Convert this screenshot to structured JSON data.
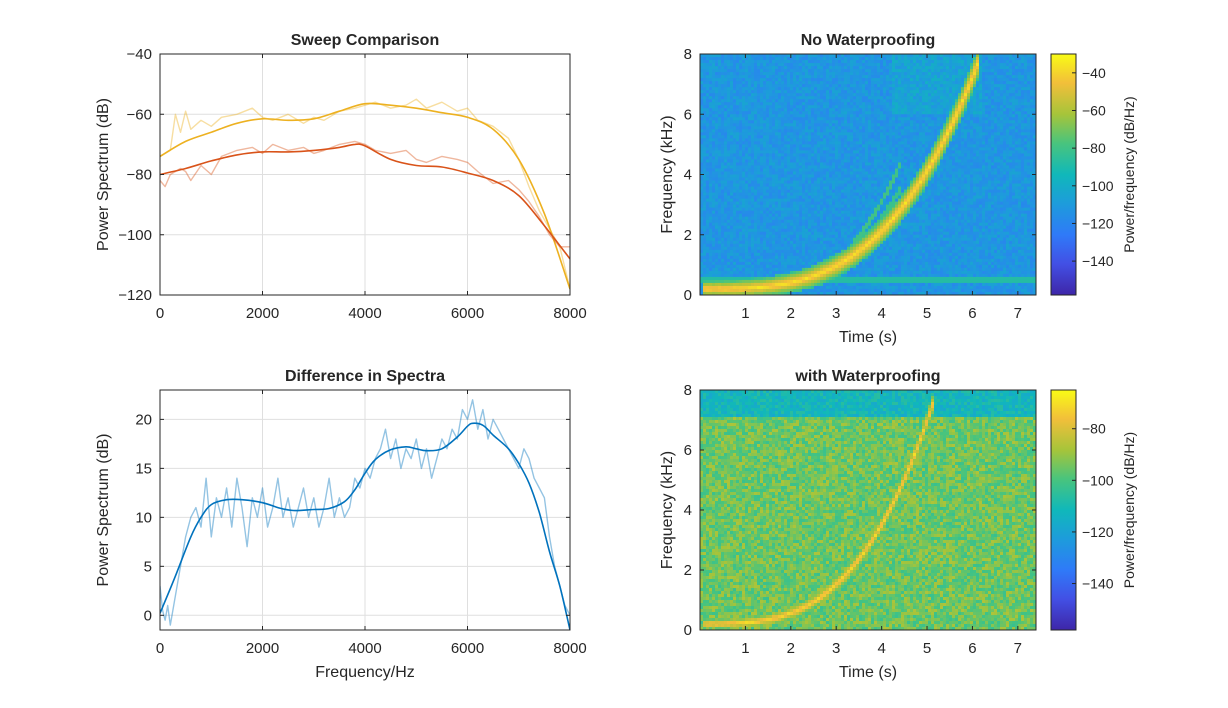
{
  "colors": {
    "series_orange": "#D95319",
    "series_yellow": "#EDB120",
    "series_blue": "#0072BD",
    "axis": "#262626",
    "grid": "#DFDFDF"
  },
  "chart_data": [
    {
      "id": "sweep",
      "type": "line",
      "title": "Sweep Comparison",
      "xlabel": "",
      "ylabel": "Power Spectrum (dB)",
      "xlim": [
        0,
        8000
      ],
      "ylim": [
        -120,
        -40
      ],
      "xticks": [
        0,
        2000,
        4000,
        6000,
        8000
      ],
      "yticks": [
        -120,
        -100,
        -80,
        -60,
        -40
      ],
      "grid": true,
      "series": [
        {
          "color": "#EDB120",
          "raw_x": [
            0,
            200,
            300,
            400,
            500,
            600,
            800,
            1000,
            1200,
            1500,
            1800,
            2000,
            2200,
            2500,
            2800,
            3000,
            3200,
            3500,
            3800,
            4000,
            4200,
            4500,
            4800,
            5000,
            5200,
            5500,
            5800,
            6000,
            6200,
            6500,
            6800,
            7000,
            7200,
            7400,
            7600,
            7800,
            8000
          ],
          "raw_y": [
            -74,
            -72,
            -60,
            -66,
            -59,
            -65,
            -62,
            -64,
            -61,
            -60,
            -58,
            -61,
            -62,
            -60,
            -63,
            -61,
            -62,
            -59,
            -58,
            -57,
            -56,
            -58,
            -57,
            -55,
            -58,
            -56,
            -59,
            -58,
            -62,
            -64,
            -68,
            -75,
            -84,
            -92,
            -98,
            -104,
            -118
          ],
          "smooth_x": [
            0,
            500,
            1000,
            1500,
            2000,
            2500,
            3000,
            3500,
            4000,
            4500,
            5000,
            5500,
            6000,
            6500,
            7000,
            7500,
            8000
          ],
          "smooth_y": [
            -74,
            -69,
            -66,
            -63,
            -61.5,
            -62,
            -61.5,
            -59,
            -56.5,
            -57,
            -58,
            -59.5,
            -61,
            -65,
            -75,
            -93,
            -118
          ]
        },
        {
          "color": "#D95319",
          "raw_x": [
            0,
            100,
            200,
            300,
            400,
            500,
            600,
            800,
            1000,
            1200,
            1500,
            1800,
            2000,
            2200,
            2500,
            2800,
            3000,
            3200,
            3500,
            3800,
            4000,
            4200,
            4500,
            4800,
            5000,
            5200,
            5500,
            5800,
            6000,
            6200,
            6500,
            6800,
            7000,
            7200,
            7400,
            7600,
            7800,
            8000
          ],
          "raw_y": [
            -82,
            -84,
            -80,
            -79,
            -78,
            -79,
            -82,
            -77,
            -80,
            -74,
            -72,
            -71,
            -73,
            -70,
            -72,
            -71,
            -73,
            -72,
            -70,
            -69,
            -70,
            -72,
            -73,
            -72,
            -75,
            -76,
            -74,
            -75,
            -76,
            -79,
            -83,
            -82,
            -85,
            -89,
            -94,
            -100,
            -104,
            -104
          ],
          "smooth_x": [
            0,
            500,
            1000,
            1500,
            2000,
            2500,
            3000,
            3500,
            3800,
            4000,
            4500,
            5000,
            5500,
            6000,
            6500,
            7000,
            7500,
            8000
          ],
          "smooth_y": [
            -80,
            -78,
            -75.5,
            -73.5,
            -72.5,
            -72.5,
            -72,
            -71,
            -70,
            -70.5,
            -75,
            -77,
            -77.5,
            -79.5,
            -82,
            -87,
            -97,
            -108
          ]
        }
      ]
    },
    {
      "id": "diff",
      "type": "line",
      "title": "Difference in Spectra",
      "xlabel": "Frequency/Hz",
      "ylabel": "Power Spectrum (dB)",
      "xlim": [
        0,
        8000
      ],
      "ylim": [
        -1.5,
        23
      ],
      "xticks": [
        0,
        2000,
        4000,
        6000,
        8000
      ],
      "yticks": [
        0,
        5,
        10,
        15,
        20
      ],
      "grid": true,
      "series": [
        {
          "color": "#0072BD",
          "raw_x": [
            0,
            50,
            100,
            150,
            200,
            300,
            400,
            500,
            600,
            700,
            800,
            900,
            1000,
            1100,
            1200,
            1300,
            1400,
            1500,
            1600,
            1700,
            1800,
            1900,
            2000,
            2100,
            2200,
            2300,
            2400,
            2500,
            2600,
            2700,
            2800,
            2900,
            3000,
            3100,
            3200,
            3300,
            3400,
            3500,
            3600,
            3700,
            3800,
            3900,
            4000,
            4100,
            4200,
            4300,
            4400,
            4500,
            4600,
            4700,
            4800,
            4900,
            5000,
            5100,
            5200,
            5300,
            5400,
            5500,
            5600,
            5700,
            5800,
            5900,
            6000,
            6100,
            6200,
            6300,
            6400,
            6500,
            6600,
            6700,
            6800,
            6900,
            7000,
            7100,
            7200,
            7300,
            7400,
            7500,
            7600,
            7700,
            7800,
            7900,
            8000
          ],
          "raw_y": [
            3,
            0.5,
            -0.5,
            1,
            -1,
            2,
            5,
            8,
            10,
            11,
            9,
            14,
            8,
            12,
            10,
            13,
            9,
            14,
            11,
            7,
            12,
            10,
            13,
            9,
            11,
            14,
            10,
            12,
            9,
            11,
            13,
            10,
            12,
            9,
            11,
            14,
            10,
            12,
            10,
            11,
            14,
            13,
            15,
            14,
            16,
            17,
            19,
            16,
            18,
            15,
            17,
            16,
            18,
            15,
            17,
            14,
            16,
            18,
            17,
            19,
            18,
            21,
            20,
            22,
            19,
            21,
            18,
            20,
            19,
            18,
            17,
            16,
            15,
            17,
            16,
            14,
            13,
            12,
            8,
            5,
            3,
            1,
            0
          ],
          "smooth_x": [
            0,
            300,
            600,
            800,
            1000,
            1300,
            1600,
            2000,
            2300,
            2600,
            3000,
            3300,
            3600,
            3800,
            4000,
            4200,
            4500,
            4800,
            5000,
            5200,
            5500,
            5800,
            6000,
            6100,
            6300,
            6500,
            6800,
            7000,
            7200,
            7400,
            7600,
            7800,
            8000
          ],
          "smooth_y": [
            0.2,
            4,
            8,
            10,
            11.3,
            11.8,
            11.8,
            11.5,
            11,
            10.7,
            10.8,
            10.9,
            11.6,
            12.8,
            14.5,
            15.9,
            16.9,
            17.2,
            17,
            16.8,
            17,
            18.2,
            19.3,
            19.6,
            19.4,
            18.4,
            17,
            15.5,
            13.5,
            10.5,
            6.5,
            3,
            -1.5
          ]
        }
      ]
    },
    {
      "id": "spec1",
      "type": "heatmap",
      "title": "No Waterproofing",
      "xlabel": "Time (s)",
      "ylabel": "Frequency (kHz)",
      "xlim": [
        0.0,
        7.4
      ],
      "ylim": [
        0,
        8
      ],
      "xticks": [
        1,
        2,
        3,
        4,
        5,
        6,
        7
      ],
      "yticks": [
        0,
        2,
        4,
        6,
        8
      ],
      "colorbar": {
        "label": "Power/frequency (dB/Hz)",
        "range": [
          -158,
          -30
        ],
        "ticks": [
          -140,
          -120,
          -100,
          -80,
          -60,
          -40
        ]
      }
    },
    {
      "id": "spec2",
      "type": "heatmap",
      "title": "with Waterproofing",
      "xlabel": "Time (s)",
      "ylabel": "Frequency (kHz)",
      "xlim": [
        0.0,
        7.4
      ],
      "ylim": [
        0,
        8
      ],
      "xticks": [
        1,
        2,
        3,
        4,
        5,
        6,
        7
      ],
      "yticks": [
        0,
        2,
        4,
        6,
        8
      ],
      "colorbar": {
        "label": "Power/frequency (dB/Hz)",
        "range": [
          -158,
          -65
        ],
        "ticks": [
          -140,
          -120,
          -100,
          -80
        ]
      }
    }
  ]
}
